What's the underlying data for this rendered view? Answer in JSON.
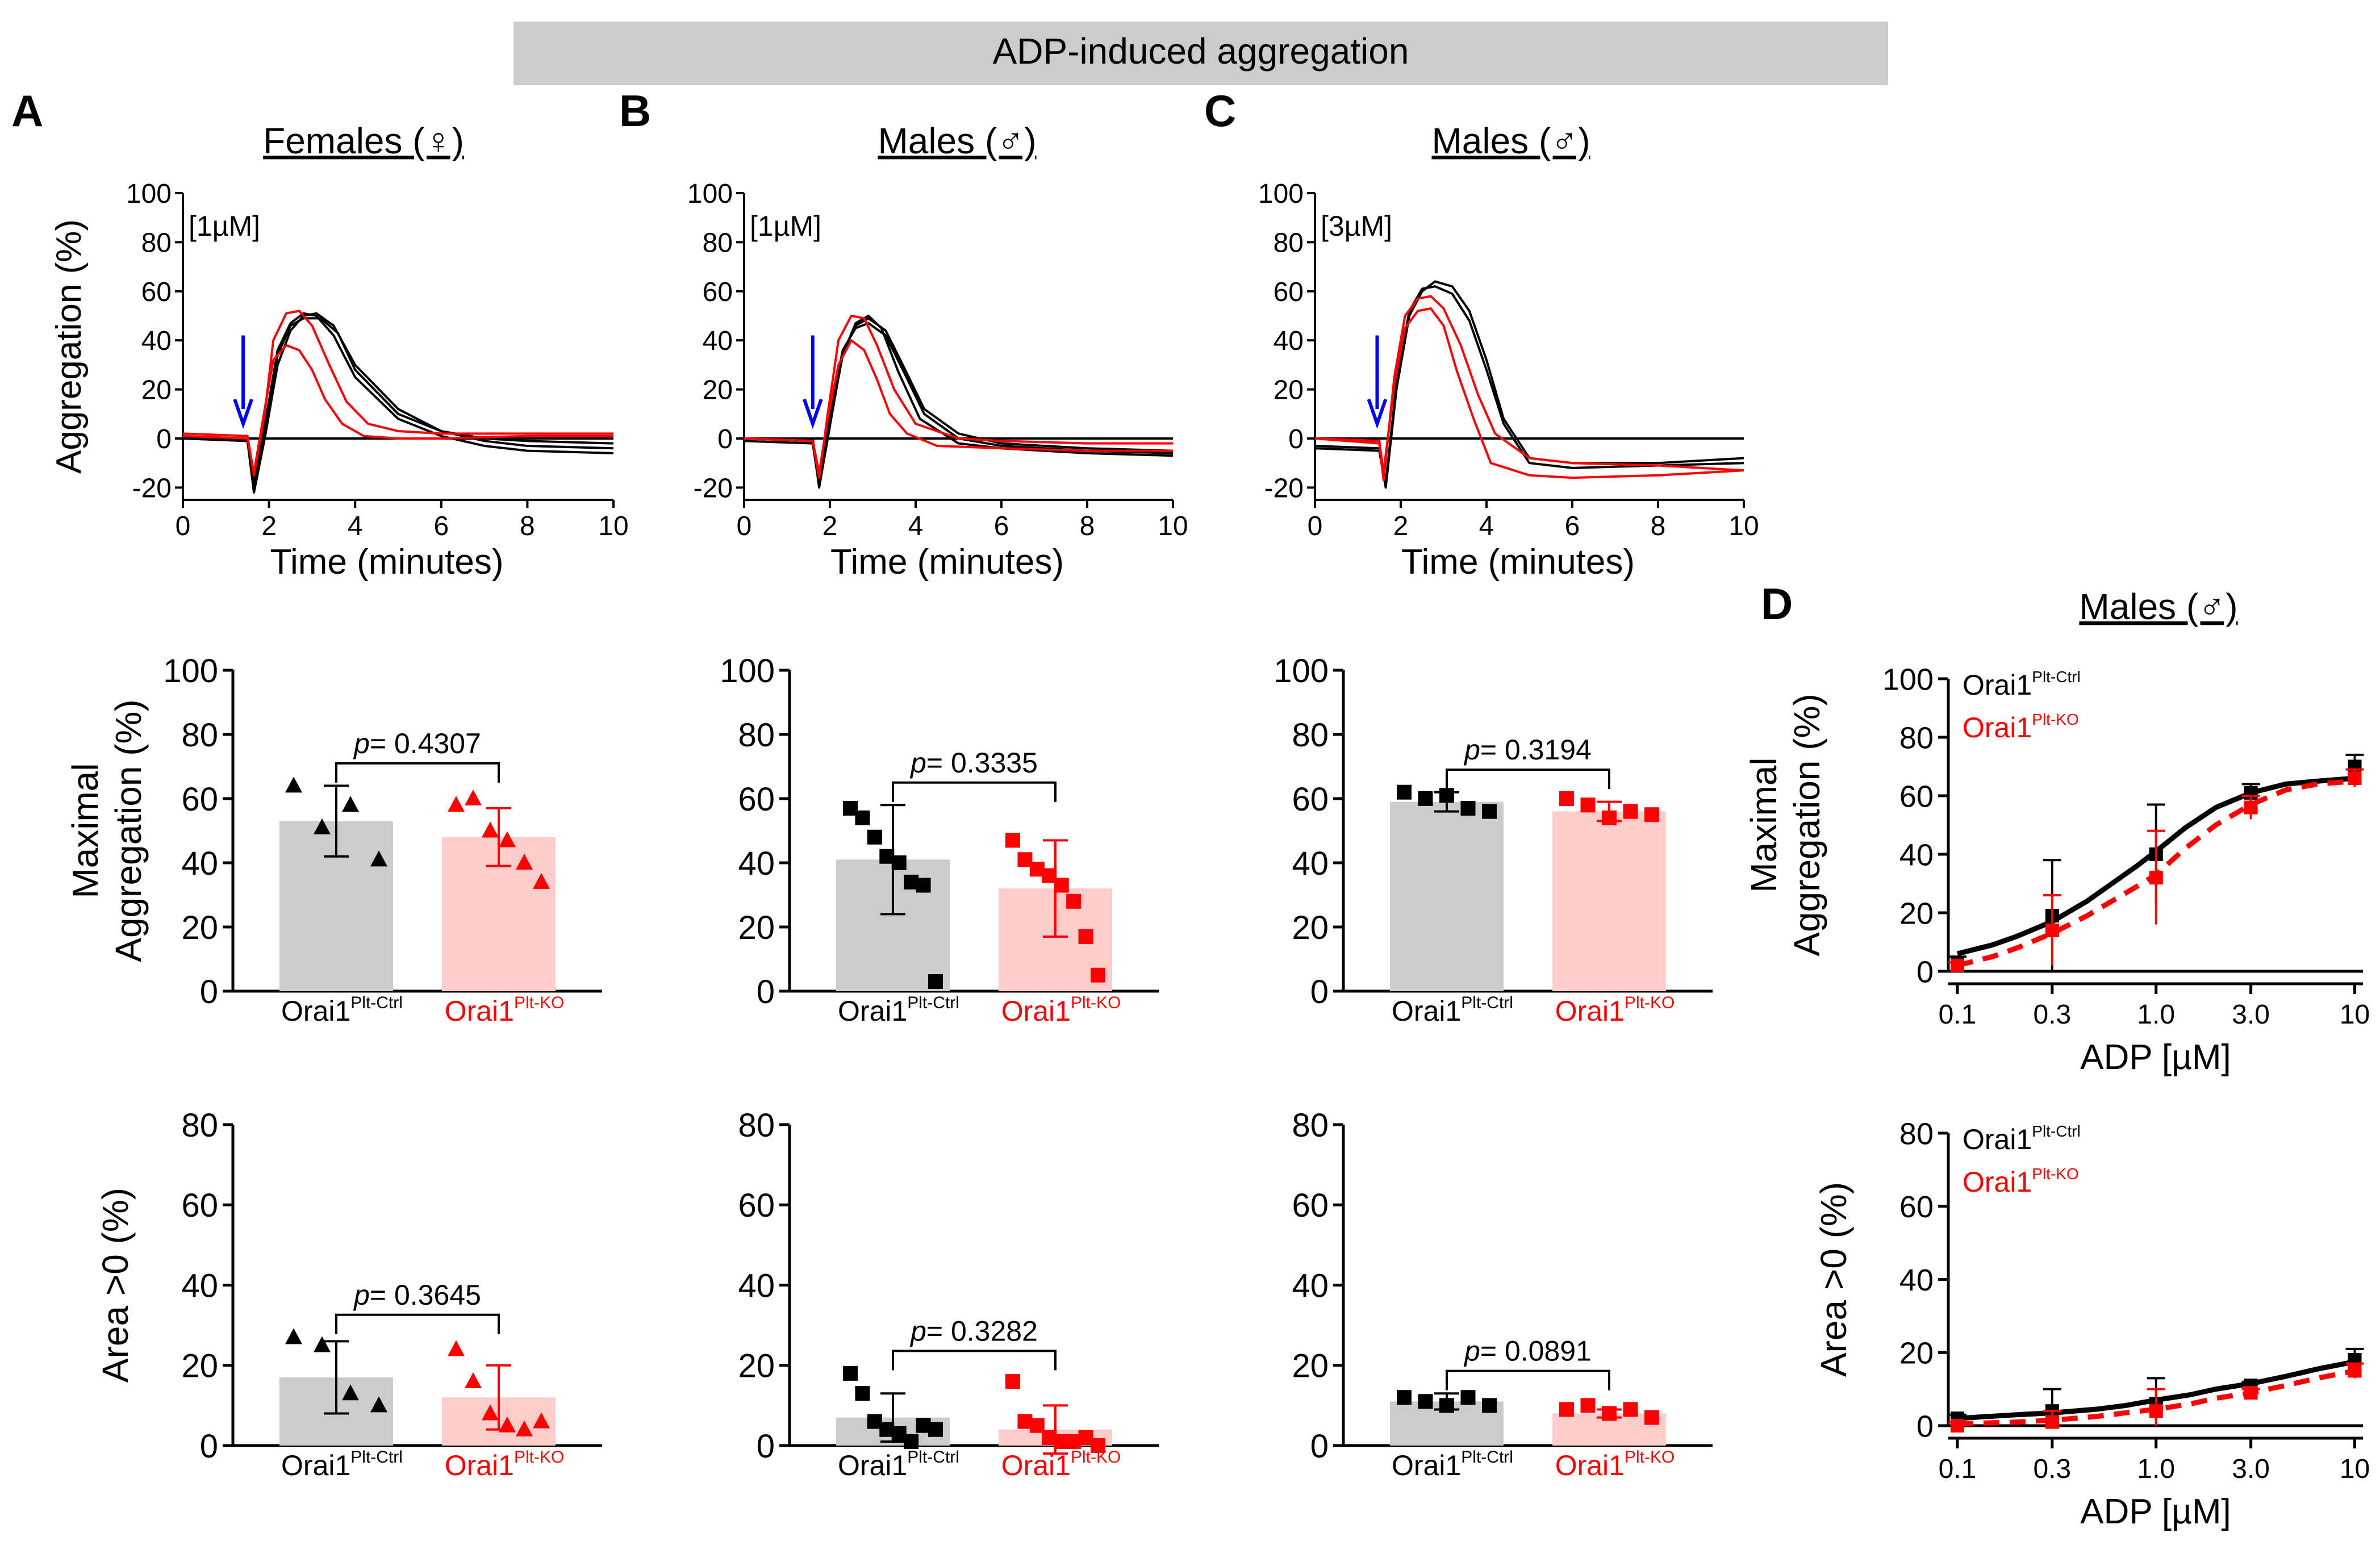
{
  "figure": {
    "banner": "ADP-induced aggregation",
    "ctrl_label": "Orai1",
    "ctrl_sup": "Plt-Ctrl",
    "ko_label": "Orai1",
    "ko_sup": "Plt-KO",
    "colors": {
      "ctrl": "#000000",
      "ko": "#ff0000",
      "ctrl_bar": "#cccccc",
      "ko_bar": "#ffcccc",
      "banner": "#cccccc",
      "arrow": "#0000ff"
    }
  },
  "chart_data": [
    {
      "id": "A-trace",
      "panel": "A",
      "type": "line",
      "title": "Females (♀)",
      "annotation": "[1µM]",
      "xlabel": "Time (minutes)",
      "ylabel": "Aggregation (%)",
      "xlim": [
        0,
        10
      ],
      "ylim": [
        -25,
        100
      ],
      "xticks": [
        "0",
        "2",
        "4",
        "6",
        "8",
        "10"
      ],
      "yticks": [
        "-20",
        "0",
        "20",
        "40",
        "60",
        "80",
        "100"
      ],
      "arrow_x": 1.4,
      "series": [
        {
          "group": "ctrl",
          "x": [
            0,
            1.5,
            1.65,
            1.9,
            2.2,
            2.5,
            2.8,
            3.1,
            3.5,
            4,
            5,
            6,
            7,
            8,
            10
          ],
          "y": [
            0,
            -1,
            -22,
            0,
            30,
            44,
            50,
            51,
            46,
            30,
            12,
            3,
            -1,
            -3,
            -4
          ]
        },
        {
          "group": "ctrl",
          "x": [
            0,
            1.5,
            1.65,
            1.9,
            2.2,
            2.5,
            2.8,
            3.2,
            3.6,
            4,
            5,
            6,
            7,
            8,
            10
          ],
          "y": [
            0,
            -1,
            -20,
            2,
            34,
            46,
            49,
            49,
            43,
            28,
            10,
            3,
            0,
            -1,
            -2
          ]
        },
        {
          "group": "ctrl",
          "x": [
            0,
            1.5,
            1.65,
            1.9,
            2.2,
            2.5,
            2.8,
            3.1,
            3.5,
            4,
            5,
            6,
            7,
            8,
            10
          ],
          "y": [
            0,
            0,
            -18,
            5,
            36,
            47,
            51,
            50,
            42,
            25,
            8,
            1,
            -3,
            -5,
            -6
          ]
        },
        {
          "group": "ko",
          "x": [
            0,
            1.5,
            1.65,
            1.9,
            2.1,
            2.4,
            2.7,
            3.0,
            3.4,
            3.8,
            4.3,
            5,
            6,
            8,
            10
          ],
          "y": [
            2,
            1,
            -15,
            10,
            40,
            51,
            52,
            46,
            30,
            15,
            6,
            3,
            2,
            2,
            2
          ]
        },
        {
          "group": "ko",
          "x": [
            0,
            1.5,
            1.65,
            1.9,
            2.1,
            2.4,
            2.7,
            3.0,
            3.3,
            3.7,
            4.2,
            5,
            6,
            8,
            10
          ],
          "y": [
            1,
            0,
            -14,
            12,
            32,
            38,
            36,
            28,
            16,
            6,
            1,
            0,
            0,
            1,
            1
          ]
        }
      ]
    },
    {
      "id": "B-trace",
      "panel": "B",
      "type": "line",
      "title": "Males (♂)",
      "annotation": "[1µM]",
      "xlabel": "Time (minutes)",
      "ylabel": "",
      "xlim": [
        0,
        10
      ],
      "ylim": [
        -25,
        100
      ],
      "xticks": [
        "0",
        "2",
        "4",
        "6",
        "8",
        "10"
      ],
      "yticks": [
        "-20",
        "0",
        "20",
        "40",
        "60",
        "80",
        "100"
      ],
      "arrow_x": 1.6,
      "series": [
        {
          "group": "ctrl",
          "x": [
            0,
            1.6,
            1.75,
            2.0,
            2.3,
            2.6,
            2.9,
            3.3,
            3.7,
            4.2,
            5,
            6,
            8,
            10
          ],
          "y": [
            0,
            -1,
            -20,
            5,
            35,
            46,
            49,
            44,
            30,
            12,
            2,
            -2,
            -4,
            -5
          ]
        },
        {
          "group": "ctrl",
          "x": [
            0,
            1.6,
            1.75,
            2.0,
            2.3,
            2.6,
            2.9,
            3.3,
            3.7,
            4.2,
            5,
            6,
            8,
            10
          ],
          "y": [
            0,
            0,
            -18,
            8,
            36,
            45,
            47,
            42,
            28,
            10,
            0,
            -3,
            -5,
            -6
          ]
        },
        {
          "group": "ctrl",
          "x": [
            0,
            1.6,
            1.75,
            2.0,
            2.3,
            2.6,
            2.9,
            3.2,
            3.6,
            4.1,
            5,
            6,
            8,
            10
          ],
          "y": [
            -1,
            -2,
            -19,
            6,
            34,
            47,
            50,
            45,
            27,
            8,
            -2,
            -4,
            -6,
            -7
          ]
        },
        {
          "group": "ko",
          "x": [
            0,
            1.6,
            1.75,
            1.95,
            2.2,
            2.5,
            2.8,
            3.1,
            3.5,
            4.0,
            5,
            6,
            8,
            10
          ],
          "y": [
            0,
            -1,
            -16,
            10,
            40,
            50,
            49,
            38,
            20,
            6,
            0,
            -1,
            -2,
            -2
          ]
        },
        {
          "group": "ko",
          "x": [
            0,
            1.6,
            1.75,
            1.95,
            2.2,
            2.5,
            2.8,
            3.1,
            3.4,
            3.8,
            4.5,
            6,
            8,
            10
          ],
          "y": [
            0,
            -1,
            -14,
            8,
            30,
            40,
            36,
            24,
            10,
            2,
            -3,
            -4,
            -5,
            -5
          ]
        }
      ]
    },
    {
      "id": "C-trace",
      "panel": "C",
      "type": "line",
      "title": "Males (♂)",
      "annotation": "[3µM]",
      "xlabel": "Time (minutes)",
      "ylabel": "",
      "xlim": [
        0,
        10
      ],
      "ylim": [
        -25,
        100
      ],
      "xticks": [
        "0",
        "2",
        "4",
        "6",
        "8",
        "10"
      ],
      "yticks": [
        "-20",
        "0",
        "20",
        "40",
        "60",
        "80",
        "100"
      ],
      "arrow_x": 1.45,
      "series": [
        {
          "group": "ctrl",
          "x": [
            0,
            1.5,
            1.65,
            1.9,
            2.2,
            2.5,
            2.8,
            3.2,
            3.6,
            4.0,
            4.4,
            5,
            6,
            8,
            10
          ],
          "y": [
            -4,
            -5,
            -20,
            20,
            50,
            60,
            64,
            62,
            52,
            32,
            8,
            -8,
            -10,
            -10,
            -8
          ]
        },
        {
          "group": "ctrl",
          "x": [
            0,
            1.5,
            1.65,
            1.9,
            2.2,
            2.5,
            2.8,
            3.2,
            3.6,
            4.0,
            4.4,
            5,
            6,
            8,
            10
          ],
          "y": [
            -3,
            -4,
            -18,
            22,
            52,
            61,
            62,
            59,
            48,
            28,
            6,
            -10,
            -12,
            -11,
            -10
          ]
        },
        {
          "group": "ko",
          "x": [
            0,
            1.5,
            1.6,
            1.85,
            2.1,
            2.4,
            2.7,
            3.0,
            3.4,
            3.8,
            4.2,
            5,
            6,
            8,
            10
          ],
          "y": [
            0,
            -2,
            -17,
            25,
            50,
            57,
            58,
            53,
            38,
            18,
            2,
            -8,
            -10,
            -11,
            -13
          ]
        },
        {
          "group": "ko",
          "x": [
            0,
            1.5,
            1.6,
            1.85,
            2.1,
            2.4,
            2.7,
            3.0,
            3.3,
            3.7,
            4.1,
            5,
            6,
            8,
            10
          ],
          "y": [
            0,
            -1,
            -14,
            22,
            45,
            52,
            53,
            46,
            28,
            8,
            -10,
            -15,
            -16,
            -15,
            -13
          ]
        }
      ]
    },
    {
      "id": "A-max",
      "panel": "A",
      "type": "bar",
      "ylabel_lines": [
        "Maximal",
        "Aggregation (%)"
      ],
      "ylim": [
        0,
        100
      ],
      "yticks": [
        "0",
        "20",
        "40",
        "60",
        "80",
        "100"
      ],
      "marker": "triangle",
      "pvalue": "= 0.4307",
      "categories": [
        "Orai1 Plt-Ctrl",
        "Orai1 Plt-KO"
      ],
      "values": [
        53,
        48
      ],
      "sd": [
        11,
        9
      ],
      "points": [
        [
          64,
          51,
          58,
          41
        ],
        [
          58,
          60,
          50,
          47,
          40,
          34
        ]
      ]
    },
    {
      "id": "B-max",
      "panel": "B",
      "type": "bar",
      "ylabel_lines": [],
      "ylim": [
        0,
        100
      ],
      "yticks": [
        "0",
        "20",
        "40",
        "60",
        "80",
        "100"
      ],
      "marker": "square",
      "pvalue": "= 0.3335",
      "categories": [
        "Orai1 Plt-Ctrl",
        "Orai1 Plt-KO"
      ],
      "values": [
        41,
        32
      ],
      "sd": [
        17,
        15
      ],
      "points": [
        [
          57,
          54,
          48,
          42,
          40,
          34,
          33,
          3
        ],
        [
          47,
          41,
          38,
          36,
          33,
          28,
          17,
          5
        ]
      ]
    },
    {
      "id": "C-max",
      "panel": "C",
      "type": "bar",
      "ylabel_lines": [],
      "ylim": [
        0,
        100
      ],
      "yticks": [
        "0",
        "20",
        "40",
        "60",
        "80",
        "100"
      ],
      "marker": "square",
      "pvalue": "= 0.3194",
      "categories": [
        "Orai1 Plt-Ctrl",
        "Orai1 Plt-KO"
      ],
      "values": [
        59,
        56
      ],
      "sd": [
        3,
        3
      ],
      "points": [
        [
          62,
          60,
          61,
          57,
          56
        ],
        [
          60,
          58,
          54,
          56,
          55
        ]
      ]
    },
    {
      "id": "A-area",
      "panel": "A",
      "type": "bar",
      "ylabel_lines": [
        "Area >0 (%)"
      ],
      "ylim": [
        0,
        80
      ],
      "yticks": [
        "0",
        "20",
        "40",
        "60",
        "80"
      ],
      "marker": "triangle",
      "pvalue": "= 0.3645",
      "categories": [
        "Orai1 Plt-Ctrl",
        "Orai1 Plt-KO"
      ],
      "values": [
        17,
        12
      ],
      "sd": [
        9,
        8
      ],
      "points": [
        [
          27,
          25,
          13,
          10
        ],
        [
          24,
          16,
          8,
          5,
          4,
          6
        ]
      ]
    },
    {
      "id": "B-area",
      "panel": "B",
      "type": "bar",
      "ylabel_lines": [],
      "ylim": [
        0,
        80
      ],
      "yticks": [
        "0",
        "20",
        "40",
        "60",
        "80"
      ],
      "marker": "square",
      "pvalue": "= 0.3282",
      "categories": [
        "Orai1 Plt-Ctrl",
        "Orai1 Plt-KO"
      ],
      "values": [
        7,
        4
      ],
      "sd": [
        6,
        6
      ],
      "points": [
        [
          18,
          13,
          6,
          4,
          3,
          1,
          5,
          4
        ],
        [
          16,
          6,
          5,
          2,
          1,
          1,
          2,
          0
        ]
      ]
    },
    {
      "id": "C-area",
      "panel": "C",
      "type": "bar",
      "ylabel_lines": [],
      "ylim": [
        0,
        80
      ],
      "yticks": [
        "0",
        "20",
        "40",
        "60",
        "80"
      ],
      "marker": "square",
      "pvalue": "= 0.0891",
      "categories": [
        "Orai1 Plt-Ctrl",
        "Orai1 Plt-KO"
      ],
      "values": [
        11,
        8
      ],
      "sd": [
        2,
        1
      ],
      "points": [
        [
          12,
          11,
          10,
          12,
          10
        ],
        [
          9,
          10,
          8,
          9,
          7
        ]
      ]
    },
    {
      "id": "D-max",
      "panel": "D",
      "type": "line",
      "title": "Males (♂)",
      "ylabel_lines": [
        "Maximal",
        "Aggregation (%)"
      ],
      "xlabel": "ADP [µM]",
      "xscale": "log",
      "xlim": [
        0.09,
        11
      ],
      "ylim": [
        0,
        100
      ],
      "xticks": [
        "0.1",
        "0.3",
        "1.0",
        "3.0",
        "10"
      ],
      "yticks": [
        "0",
        "20",
        "40",
        "60",
        "80",
        "100"
      ],
      "legend": "top-left",
      "series": [
        {
          "group": "ctrl",
          "x": [
            0.1,
            0.3,
            1.0,
            3.0,
            10
          ],
          "y": [
            3,
            19,
            40,
            61,
            70
          ],
          "err": [
            2,
            19,
            17,
            3,
            4
          ],
          "fit_x": [
            0.1,
            0.15,
            0.2,
            0.3,
            0.45,
            0.6,
            0.8,
            1.0,
            1.4,
            2.0,
            3.0,
            4.5,
            6.5,
            10
          ],
          "fit_y": [
            6,
            9,
            12,
            17,
            24,
            30,
            36,
            41,
            49,
            56,
            61,
            64,
            65,
            66
          ]
        },
        {
          "group": "ko",
          "x": [
            0.1,
            0.3,
            1.0,
            3.0,
            10
          ],
          "y": [
            2,
            14,
            32,
            56,
            66
          ],
          "err": [
            1,
            12,
            16,
            4,
            3
          ],
          "fit_x": [
            0.1,
            0.15,
            0.2,
            0.3,
            0.45,
            0.6,
            0.8,
            1.0,
            1.4,
            2.0,
            3.0,
            4.5,
            6.5,
            10
          ],
          "fit_y": [
            2,
            5,
            8,
            13,
            19,
            24,
            29,
            33,
            42,
            50,
            57,
            62,
            64,
            65
          ]
        }
      ]
    },
    {
      "id": "D-area",
      "panel": "D",
      "type": "line",
      "ylabel_lines": [
        "Area >0 (%)"
      ],
      "xlabel": "ADP [µM]",
      "xscale": "log",
      "xlim": [
        0.09,
        11
      ],
      "ylim": [
        0,
        80
      ],
      "xticks": [
        "0.1",
        "0.3",
        "1.0",
        "3.0",
        "10"
      ],
      "yticks": [
        "0",
        "20",
        "40",
        "60",
        "80"
      ],
      "legend": "top-left",
      "series": [
        {
          "group": "ctrl",
          "x": [
            0.1,
            0.3,
            1.0,
            3.0,
            10
          ],
          "y": [
            2,
            4,
            6,
            11,
            18
          ],
          "err": [
            1,
            6,
            7,
            1,
            3
          ],
          "fit_x": [
            0.1,
            0.2,
            0.3,
            0.5,
            0.7,
            1.0,
            1.5,
            2.0,
            3.0,
            4.5,
            6.5,
            10
          ],
          "fit_y": [
            2,
            3,
            3.5,
            4.5,
            5.5,
            7,
            8.5,
            10,
            11.5,
            13.5,
            15.5,
            17.5
          ]
        },
        {
          "group": "ko",
          "x": [
            0.1,
            0.3,
            1.0,
            3.0,
            10
          ],
          "y": [
            0,
            1,
            4,
            9,
            15
          ],
          "err": [
            1,
            3,
            6,
            1,
            2
          ],
          "fit_x": [
            0.1,
            0.2,
            0.3,
            0.5,
            0.7,
            1.0,
            1.5,
            2.0,
            3.0,
            4.5,
            6.5,
            10
          ],
          "fit_y": [
            0.5,
            1,
            1.5,
            2.5,
            3.5,
            4.5,
            6,
            7.5,
            9,
            11,
            13,
            15
          ]
        }
      ]
    }
  ],
  "panel_letters": [
    "A",
    "B",
    "C",
    "D"
  ]
}
